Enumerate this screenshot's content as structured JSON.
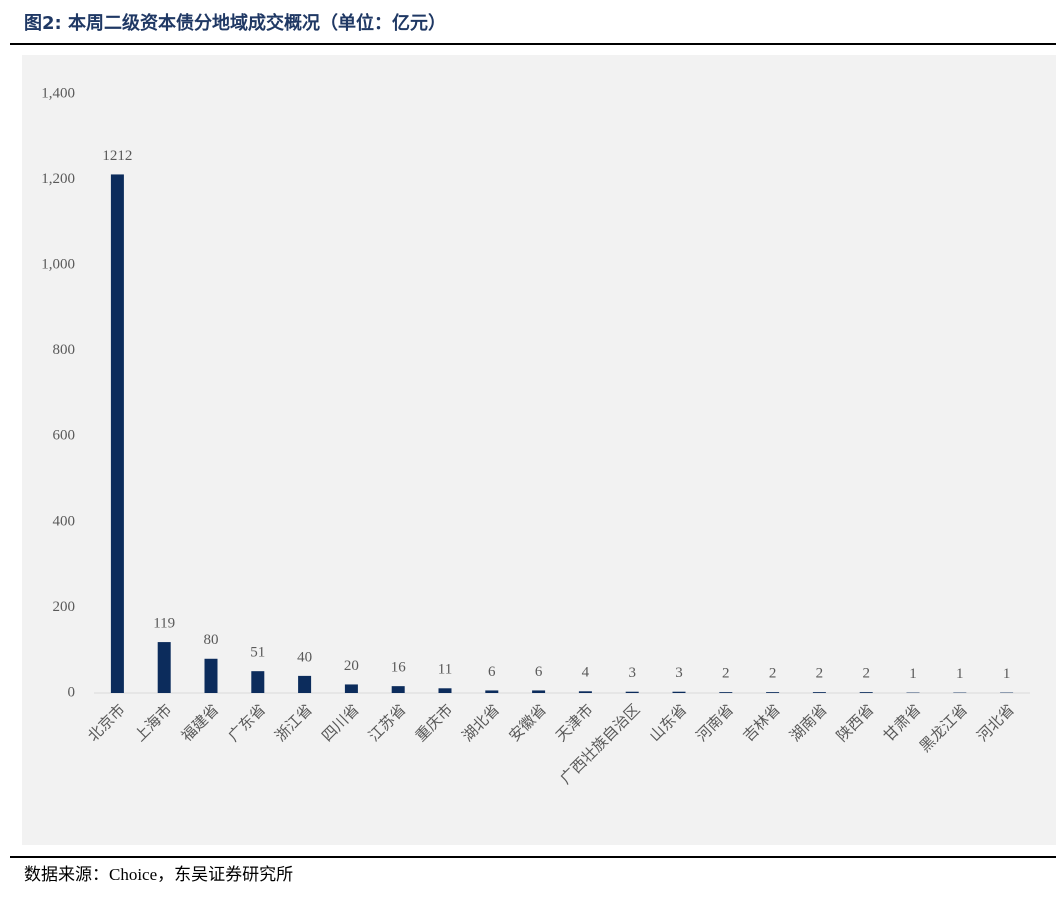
{
  "chart_data": {
    "type": "bar",
    "title": "图2: 本周二级资本债分地域成交概况（单位：亿元）",
    "source": "数据来源：Choice，东吴证券研究所",
    "categories": [
      "北京市",
      "上海市",
      "福建省",
      "广东省",
      "浙江省",
      "四川省",
      "江苏省",
      "重庆市",
      "湖北省",
      "安徽省",
      "天津市",
      "广西壮族自治区",
      "山东省",
      "河南省",
      "吉林省",
      "湖南省",
      "陕西省",
      "甘肃省",
      "黑龙江省",
      "河北省"
    ],
    "values": [
      1212,
      119,
      80,
      51,
      40,
      20,
      16,
      11,
      6,
      6,
      4,
      3,
      3,
      2,
      2,
      2,
      2,
      1,
      1,
      1
    ],
    "color": "#0c2c5c",
    "ylim": [
      0,
      1400
    ],
    "yticks": [
      0,
      200,
      400,
      600,
      800,
      {
        "value": 1000,
        "label": "1,000"
      },
      {
        "value": 1200,
        "label": "1,200"
      },
      {
        "value": 1400,
        "label": "1,400"
      }
    ],
    "grid": false
  }
}
